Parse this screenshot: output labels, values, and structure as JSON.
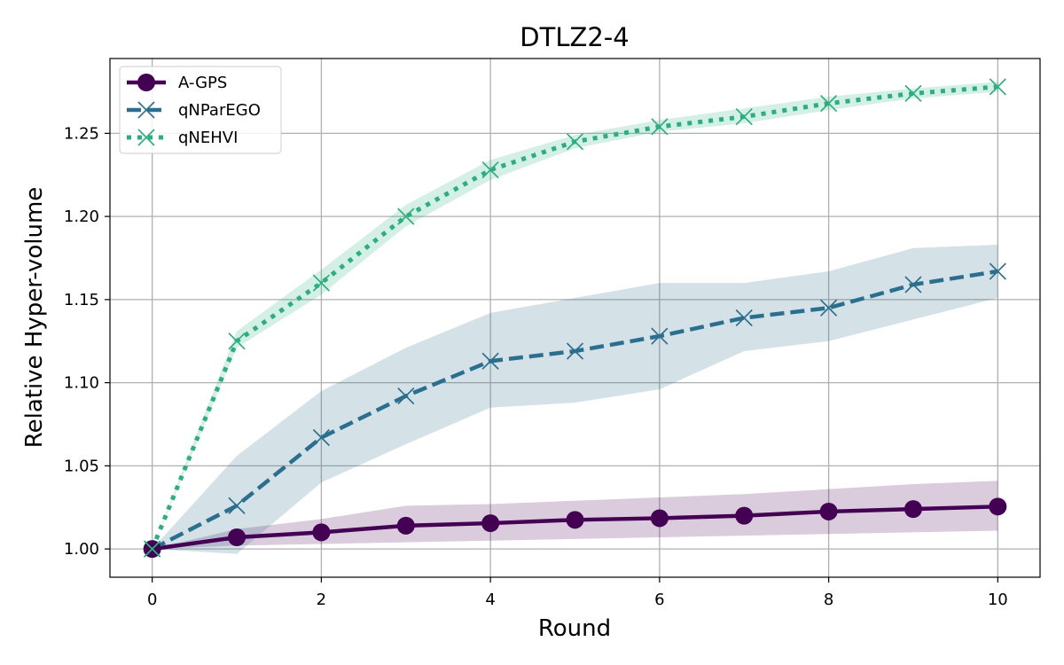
{
  "chart_data": {
    "type": "line",
    "title": "DTLZ2-4",
    "xlabel": "Round",
    "ylabel": "Relative Hyper-volume",
    "xlim": [
      -0.5,
      10.5
    ],
    "ylim": [
      0.983,
      1.295
    ],
    "xticks": [
      0,
      2,
      4,
      6,
      8,
      10
    ],
    "xtick_labels": [
      "0",
      "2",
      "4",
      "6",
      "8",
      "10"
    ],
    "yticks": [
      1.0,
      1.05,
      1.1,
      1.15,
      1.2,
      1.25
    ],
    "ytick_labels": [
      "1.00",
      "1.05",
      "1.10",
      "1.15",
      "1.20",
      "1.25"
    ],
    "grid": true,
    "legend_position": "top-left",
    "x": [
      0,
      1,
      2,
      3,
      4,
      5,
      6,
      7,
      8,
      9,
      10
    ],
    "series": [
      {
        "name": "A-GPS",
        "color": "#440154",
        "linestyle": "solid",
        "marker": "circle",
        "values": [
          1.0,
          1.007,
          1.01,
          1.014,
          1.0155,
          1.0175,
          1.0185,
          1.02,
          1.0225,
          1.024,
          1.0255
        ],
        "lower": [
          1.0,
          1.002,
          1.003,
          1.004,
          1.005,
          1.006,
          1.007,
          1.008,
          1.009,
          1.01,
          1.011
        ],
        "upper": [
          1.0,
          1.012,
          1.018,
          1.026,
          1.027,
          1.029,
          1.031,
          1.033,
          1.036,
          1.039,
          1.041
        ]
      },
      {
        "name": "qNParEGO",
        "color": "#2a6f8e",
        "linestyle": "dashed",
        "marker": "x",
        "values": [
          1.0,
          1.026,
          1.067,
          1.092,
          1.113,
          1.119,
          1.128,
          1.139,
          1.145,
          1.159,
          1.167
        ],
        "lower": [
          1.0,
          0.997,
          1.04,
          1.063,
          1.085,
          1.088,
          1.096,
          1.119,
          1.125,
          1.138,
          1.151
        ],
        "upper": [
          1.0,
          1.056,
          1.095,
          1.121,
          1.142,
          1.151,
          1.16,
          1.16,
          1.167,
          1.181,
          1.183
        ]
      },
      {
        "name": "qNEHVI",
        "color": "#2aaf7e",
        "linestyle": "dotted",
        "marker": "x",
        "values": [
          1.0,
          1.125,
          1.16,
          1.2,
          1.228,
          1.245,
          1.254,
          1.26,
          1.268,
          1.274,
          1.278
        ],
        "lower": [
          1.0,
          1.121,
          1.153,
          1.194,
          1.222,
          1.241,
          1.251,
          1.256,
          1.264,
          1.271,
          1.275
        ],
        "upper": [
          1.0,
          1.131,
          1.168,
          1.207,
          1.234,
          1.249,
          1.258,
          1.265,
          1.272,
          1.277,
          1.281
        ]
      }
    ]
  }
}
